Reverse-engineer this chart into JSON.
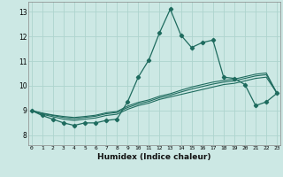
{
  "title": "",
  "xlabel": "Humidex (Indice chaleur)",
  "ylabel": "",
  "bg_color": "#cce8e4",
  "line_color": "#1e6b5e",
  "grid_color": "#aed4ce",
  "x_ticks": [
    0,
    1,
    2,
    3,
    4,
    5,
    6,
    7,
    8,
    9,
    10,
    11,
    12,
    13,
    14,
    15,
    16,
    17,
    18,
    19,
    20,
    21,
    22,
    23
  ],
  "y_ticks": [
    8,
    9,
    10,
    11,
    12,
    13
  ],
  "ylim": [
    7.6,
    13.4
  ],
  "xlim": [
    -0.3,
    23.3
  ],
  "main_line": [
    9.0,
    8.8,
    8.65,
    8.5,
    8.4,
    8.5,
    8.5,
    8.6,
    8.65,
    9.35,
    10.35,
    11.05,
    12.15,
    13.1,
    12.05,
    11.55,
    11.75,
    11.85,
    10.35,
    10.3,
    10.05,
    9.2,
    9.35,
    9.7
  ],
  "ref_lines": [
    [
      9.0,
      8.85,
      8.75,
      8.65,
      8.6,
      8.65,
      8.7,
      8.8,
      8.85,
      9.05,
      9.2,
      9.3,
      9.45,
      9.55,
      9.65,
      9.75,
      9.85,
      9.95,
      10.05,
      10.1,
      10.2,
      10.3,
      10.35,
      9.7
    ],
    [
      9.0,
      8.88,
      8.8,
      8.72,
      8.67,
      8.72,
      8.77,
      8.87,
      8.92,
      9.12,
      9.27,
      9.37,
      9.52,
      9.62,
      9.75,
      9.87,
      9.97,
      10.07,
      10.15,
      10.2,
      10.3,
      10.4,
      10.45,
      9.7
    ],
    [
      9.0,
      8.9,
      8.82,
      8.76,
      8.72,
      8.76,
      8.81,
      8.91,
      8.96,
      9.18,
      9.33,
      9.43,
      9.58,
      9.68,
      9.82,
      9.95,
      10.05,
      10.15,
      10.22,
      10.27,
      10.37,
      10.47,
      10.52,
      9.7
    ]
  ]
}
